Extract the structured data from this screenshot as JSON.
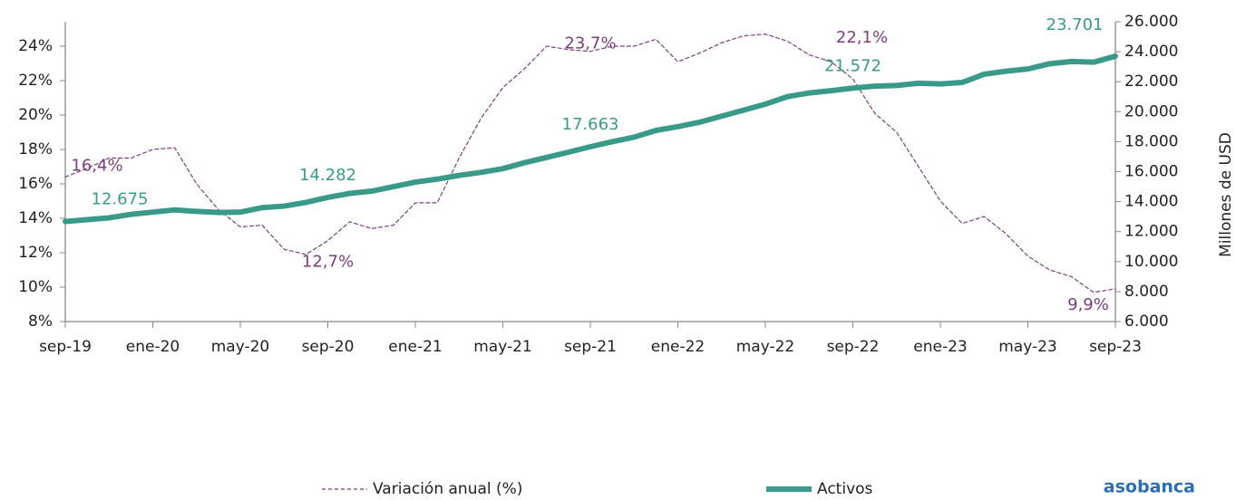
{
  "chart_data": {
    "type": "line",
    "categories": [
      "sep-19",
      null,
      null,
      null,
      "ene-20",
      null,
      null,
      null,
      "may-20",
      null,
      null,
      null,
      "sep-20",
      null,
      null,
      null,
      "ene-21",
      null,
      null,
      null,
      "may-21",
      null,
      null,
      null,
      "sep-21",
      null,
      null,
      null,
      "ene-22",
      null,
      null,
      null,
      "may-22",
      null,
      null,
      null,
      "sep-22",
      null,
      null,
      null,
      "ene-23",
      null,
      null,
      null,
      "may-23",
      null,
      null,
      null,
      "sep-23"
    ],
    "series": [
      {
        "name": "Variación anual (%)",
        "color": "#7b3f7f",
        "dashed": true,
        "values": [
          16.4,
          16.9,
          17.5,
          17.5,
          18.0,
          18.1,
          16.0,
          14.5,
          13.5,
          13.6,
          12.2,
          11.9,
          12.7,
          13.8,
          13.4,
          13.6,
          14.9,
          14.9,
          17.5,
          19.8,
          21.6,
          22.7,
          24.0,
          23.8,
          23.7,
          24.0,
          24.0,
          24.4,
          23.1,
          23.6,
          24.2,
          24.6,
          24.7,
          24.3,
          23.5,
          23.1,
          22.1,
          20.1,
          19.0,
          17.0,
          15.0,
          13.7,
          14.1,
          13.1,
          11.8,
          11.0,
          10.6,
          9.7,
          9.9
        ],
        "value_labels": [
          "16,4%",
          null,
          null,
          null,
          null,
          null,
          null,
          null,
          null,
          null,
          null,
          null,
          "12,7%",
          null,
          null,
          null,
          null,
          null,
          null,
          null,
          null,
          null,
          null,
          null,
          "23,7%",
          null,
          null,
          null,
          null,
          null,
          null,
          null,
          null,
          null,
          null,
          null,
          "22,1%",
          null,
          null,
          null,
          null,
          null,
          null,
          null,
          null,
          null,
          null,
          null,
          "9,9%"
        ]
      },
      {
        "name": "Activos",
        "color": "#3a9a8a",
        "axis": "y2",
        "values": [
          12675,
          12800,
          12920,
          13150,
          13300,
          13450,
          13350,
          13280,
          13300,
          13600,
          13700,
          13950,
          14282,
          14550,
          14700,
          15000,
          15300,
          15500,
          15750,
          15950,
          16200,
          16600,
          16950,
          17300,
          17663,
          18000,
          18300,
          18750,
          19000,
          19300,
          19700,
          20100,
          20500,
          21000,
          21250,
          21400,
          21572,
          21700,
          21750,
          21900,
          21850,
          21950,
          22500,
          22700,
          22850,
          23200,
          23350,
          23300,
          23701
        ],
        "value_labels": [
          "12.675",
          null,
          null,
          null,
          null,
          null,
          null,
          null,
          null,
          null,
          null,
          null,
          "14.282",
          null,
          null,
          null,
          null,
          null,
          null,
          null,
          null,
          null,
          null,
          null,
          "17.663",
          null,
          null,
          null,
          null,
          null,
          null,
          null,
          null,
          null,
          null,
          null,
          "21.572",
          null,
          null,
          null,
          null,
          null,
          null,
          null,
          null,
          null,
          null,
          null,
          "23.701"
        ]
      }
    ],
    "ylim": [
      8,
      24
    ],
    "yticks": [
      {
        "value": 8,
        "label": "8%"
      },
      {
        "value": 10,
        "label": "10%"
      },
      {
        "value": 12,
        "label": "12%"
      },
      {
        "value": 14,
        "label": "14%"
      },
      {
        "value": 16,
        "label": "16%"
      },
      {
        "value": 18,
        "label": "18%"
      },
      {
        "value": 20,
        "label": "20%"
      },
      {
        "value": 22,
        "label": "22%"
      },
      {
        "value": 24,
        "label": "24%"
      }
    ],
    "y2lim": [
      6000,
      26000
    ],
    "y2ticks": [
      {
        "value": 6000,
        "label": "6.000"
      },
      {
        "value": 8000,
        "label": "8.000"
      },
      {
        "value": 10000,
        "label": "10.000"
      },
      {
        "value": 12000,
        "label": "12.000"
      },
      {
        "value": 14000,
        "label": "14.000"
      },
      {
        "value": 16000,
        "label": "16.000"
      },
      {
        "value": 18000,
        "label": "18.000"
      },
      {
        "value": 20000,
        "label": "20.000"
      },
      {
        "value": 22000,
        "label": "22.000"
      },
      {
        "value": 24000,
        "label": "24.000"
      },
      {
        "value": 26000,
        "label": "26.000"
      }
    ],
    "y2label": "Millones de USD",
    "legend": "bottom",
    "logo": "asobanca"
  }
}
